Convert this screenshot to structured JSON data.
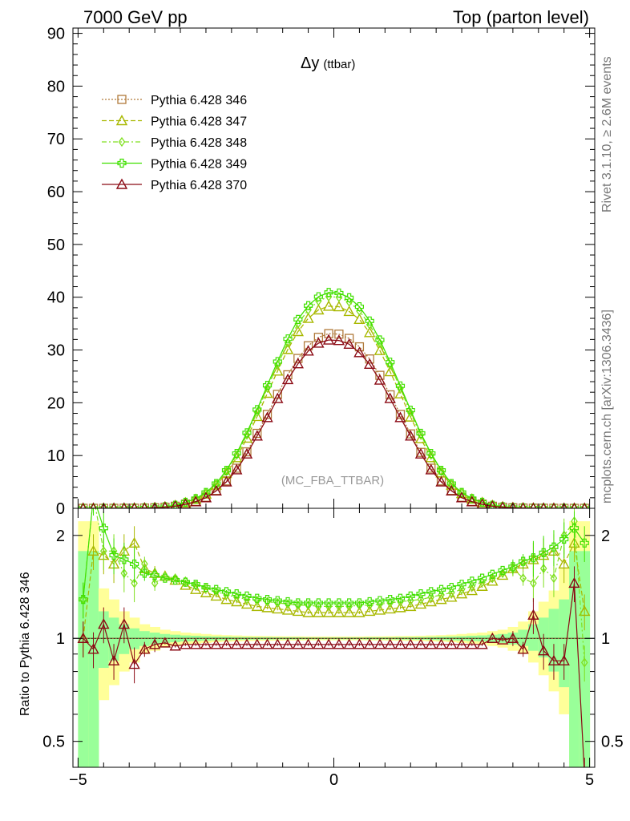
{
  "header": {
    "left_title": "7000 GeV pp",
    "right_title": "Top (parton level)"
  },
  "plot_title": {
    "main": "Δy",
    "sub": "(ttbar)"
  },
  "analysis_label": "(MC_FBA_TTBAR)",
  "side_label_top": "Rivet 3.1.10, ≥ 2.6M events",
  "side_label_bottom": "mcplots.cern.ch [arXiv:1306.3436]",
  "ratio_ylabel": "Ratio to Pythia 6.428 346",
  "legend": [
    {
      "label": "Pythia 6.428 346",
      "color": "#b07a3a",
      "marker": "square",
      "dash": "2,2"
    },
    {
      "label": "Pythia 6.428 347",
      "color": "#a8b800",
      "marker": "triangle",
      "dash": "6,3"
    },
    {
      "label": "Pythia 6.428 348",
      "color": "#80e020",
      "marker": "diamond",
      "dash": "6,3,2,3"
    },
    {
      "label": "Pythia 6.428 349",
      "color": "#40e000",
      "marker": "cross",
      "dash": ""
    },
    {
      "label": "Pythia 6.428 370",
      "color": "#8b0a14",
      "marker": "triangle",
      "dash": ""
    }
  ],
  "chart_data": {
    "type": "line",
    "x_range": [
      -5.1,
      5.1
    ],
    "main_ylim": [
      0,
      91
    ],
    "main_yticks": [
      "0",
      "10",
      "20",
      "30",
      "40",
      "50",
      "60",
      "70",
      "80",
      "90"
    ],
    "ratio_ylim": [
      0.42,
      2.4
    ],
    "ratio_log": true,
    "ratio_yticks": [
      "0.5",
      "1",
      "2"
    ],
    "xticks": [
      "−5",
      "0",
      "5"
    ],
    "x": [
      -4.9,
      -4.7,
      -4.5,
      -4.3,
      -4.1,
      -3.9,
      -3.7,
      -3.5,
      -3.3,
      -3.1,
      -2.9,
      -2.7,
      -2.5,
      -2.3,
      -2.1,
      -1.9,
      -1.7,
      -1.5,
      -1.3,
      -1.1,
      -0.9,
      -0.7,
      -0.5,
      -0.3,
      -0.1,
      0.1,
      0.3,
      0.5,
      0.7,
      0.9,
      1.1,
      1.3,
      1.5,
      1.7,
      1.9,
      2.1,
      2.3,
      2.5,
      2.7,
      2.9,
      3.1,
      3.3,
      3.5,
      3.7,
      3.9,
      4.1,
      4.3,
      4.5,
      4.7,
      4.9
    ],
    "series": [
      {
        "name": "Pythia 6.428 346",
        "values": [
          0,
          0,
          0,
          0.01,
          0.02,
          0.03,
          0.05,
          0.1,
          0.2,
          0.4,
          0.8,
          1.3,
          2.1,
          3.4,
          5.2,
          7.6,
          10.7,
          14.2,
          17.8,
          21.6,
          25.3,
          28.4,
          30.8,
          32.4,
          33.1,
          33.0,
          32.2,
          30.6,
          28.3,
          25.2,
          21.5,
          17.8,
          14.1,
          10.6,
          7.6,
          5.2,
          3.4,
          2.1,
          1.3,
          0.8,
          0.4,
          0.2,
          0.1,
          0.05,
          0.03,
          0.02,
          0.01,
          0,
          0,
          0
        ],
        "ratio": [
          1,
          1,
          1,
          1,
          1,
          1,
          1,
          1,
          1,
          1,
          1,
          1,
          1,
          1,
          1,
          1,
          1,
          1,
          1,
          1,
          1,
          1,
          1,
          1,
          1,
          1,
          1,
          1,
          1,
          1,
          1,
          1,
          1,
          1,
          1,
          1,
          1,
          1,
          1,
          1,
          1,
          1,
          1,
          1,
          1,
          1,
          1,
          1,
          1,
          1
        ]
      },
      {
        "name": "Pythia 6.428 347",
        "values": [
          0,
          0,
          0,
          0.01,
          0.03,
          0.05,
          0.08,
          0.14,
          0.28,
          0.54,
          1.05,
          1.7,
          2.7,
          4.4,
          6.6,
          9.6,
          13.3,
          17.4,
          21.8,
          26.0,
          30.1,
          33.5,
          36.0,
          37.6,
          38.3,
          38.2,
          37.3,
          35.8,
          33.3,
          29.9,
          25.9,
          21.7,
          17.3,
          13.2,
          9.6,
          6.7,
          4.4,
          2.8,
          1.75,
          1.1,
          0.56,
          0.29,
          0.15,
          0.08,
          0.05,
          0.03,
          0.01,
          0,
          0,
          0
        ],
        "ratio": [
          1.0,
          1.8,
          1.75,
          1.65,
          1.8,
          1.9,
          1.6,
          1.55,
          1.52,
          1.48,
          1.43,
          1.39,
          1.36,
          1.33,
          1.3,
          1.28,
          1.26,
          1.24,
          1.23,
          1.22,
          1.21,
          1.2,
          1.19,
          1.19,
          1.19,
          1.19,
          1.19,
          1.19,
          1.2,
          1.21,
          1.22,
          1.23,
          1.24,
          1.26,
          1.28,
          1.3,
          1.32,
          1.35,
          1.38,
          1.42,
          1.47,
          1.53,
          1.6,
          1.65,
          1.7,
          1.75,
          1.8,
          1.65,
          1.9,
          1.2
        ]
      },
      {
        "name": "Pythia 6.428 348",
        "values": [
          0,
          0,
          0,
          0.01,
          0.03,
          0.05,
          0.09,
          0.15,
          0.3,
          0.58,
          1.1,
          1.8,
          2.9,
          4.6,
          7.0,
          10.1,
          13.9,
          18.2,
          22.8,
          27.2,
          31.4,
          35.0,
          37.6,
          39.3,
          40.1,
          40.0,
          39.1,
          37.4,
          34.8,
          31.3,
          27.2,
          22.7,
          18.1,
          13.9,
          10.1,
          7.0,
          4.6,
          2.9,
          1.8,
          1.1,
          0.58,
          0.3,
          0.15,
          0.09,
          0.05,
          0.03,
          0.01,
          0,
          0,
          0
        ],
        "ratio": [
          1.3,
          2.6,
          1.8,
          1.8,
          1.55,
          1.45,
          1.65,
          1.45,
          1.52,
          1.5,
          1.47,
          1.43,
          1.4,
          1.37,
          1.34,
          1.32,
          1.3,
          1.29,
          1.28,
          1.27,
          1.26,
          1.25,
          1.25,
          1.24,
          1.24,
          1.24,
          1.24,
          1.25,
          1.25,
          1.26,
          1.27,
          1.28,
          1.29,
          1.3,
          1.32,
          1.34,
          1.36,
          1.39,
          1.42,
          1.46,
          1.5,
          1.55,
          1.6,
          1.5,
          1.45,
          1.6,
          1.5,
          2.0,
          2.2,
          0.85
        ]
      },
      {
        "name": "Pythia 6.428 349",
        "values": [
          0,
          0,
          0,
          0.01,
          0.03,
          0.05,
          0.09,
          0.16,
          0.31,
          0.6,
          1.15,
          1.85,
          3.0,
          4.7,
          7.2,
          10.4,
          14.3,
          18.7,
          23.3,
          27.8,
          32.1,
          35.8,
          38.4,
          40.1,
          40.9,
          40.8,
          39.9,
          38.2,
          35.5,
          31.9,
          27.7,
          23.2,
          18.6,
          14.2,
          10.4,
          7.2,
          4.7,
          3.0,
          1.85,
          1.15,
          0.6,
          0.31,
          0.16,
          0.09,
          0.05,
          0.03,
          0.01,
          0,
          0,
          0
        ],
        "ratio": [
          1.3,
          2.6,
          2.1,
          1.75,
          1.7,
          1.65,
          1.55,
          1.53,
          1.5,
          1.48,
          1.46,
          1.44,
          1.41,
          1.39,
          1.37,
          1.35,
          1.33,
          1.31,
          1.3,
          1.29,
          1.28,
          1.27,
          1.27,
          1.27,
          1.27,
          1.27,
          1.27,
          1.27,
          1.28,
          1.29,
          1.3,
          1.31,
          1.33,
          1.35,
          1.37,
          1.39,
          1.41,
          1.44,
          1.47,
          1.5,
          1.54,
          1.58,
          1.62,
          1.68,
          1.72,
          1.78,
          1.85,
          1.95,
          2.1,
          1.9
        ]
      },
      {
        "name": "Pythia 6.428 370",
        "values": [
          0,
          0,
          0,
          0.01,
          0.02,
          0.03,
          0.05,
          0.1,
          0.19,
          0.38,
          0.77,
          1.25,
          2.0,
          3.3,
          5.0,
          7.3,
          10.3,
          13.7,
          17.2,
          20.8,
          24.4,
          27.4,
          29.8,
          31.3,
          31.9,
          31.8,
          31.1,
          29.5,
          27.3,
          24.3,
          20.8,
          17.2,
          13.7,
          10.3,
          7.3,
          5.0,
          3.3,
          2.0,
          1.25,
          0.77,
          0.38,
          0.2,
          0.1,
          0.05,
          0.03,
          0.02,
          0.01,
          0,
          0,
          0
        ],
        "ratio": [
          1.0,
          0.93,
          1.1,
          0.86,
          1.1,
          0.84,
          0.93,
          0.96,
          0.97,
          0.95,
          0.96,
          0.96,
          0.96,
          0.96,
          0.96,
          0.96,
          0.96,
          0.96,
          0.96,
          0.96,
          0.96,
          0.96,
          0.96,
          0.96,
          0.96,
          0.96,
          0.96,
          0.96,
          0.96,
          0.96,
          0.96,
          0.96,
          0.96,
          0.96,
          0.96,
          0.96,
          0.96,
          0.96,
          0.96,
          0.96,
          1.0,
          0.99,
          1.0,
          0.93,
          1.17,
          0.92,
          0.86,
          0.86,
          1.45,
          0.4
        ]
      }
    ],
    "ratio_bands": {
      "yellow_lo": [
        0.3,
        0.3,
        0.66,
        0.73,
        0.8,
        0.85,
        0.9,
        0.92,
        0.94,
        0.95,
        0.96,
        0.965,
        0.97,
        0.975,
        0.978,
        0.98,
        0.982,
        0.983,
        0.984,
        0.985,
        0.986,
        0.986,
        0.987,
        0.987,
        0.987,
        0.987,
        0.987,
        0.987,
        0.986,
        0.986,
        0.985,
        0.984,
        0.983,
        0.982,
        0.98,
        0.978,
        0.975,
        0.97,
        0.965,
        0.96,
        0.95,
        0.94,
        0.92,
        0.9,
        0.85,
        0.78,
        0.7,
        0.6,
        0.3,
        0.3
      ],
      "yellow_hi": [
        2.2,
        2.2,
        1.4,
        1.3,
        1.2,
        1.15,
        1.1,
        1.08,
        1.06,
        1.05,
        1.04,
        1.035,
        1.03,
        1.025,
        1.022,
        1.02,
        1.018,
        1.017,
        1.016,
        1.015,
        1.014,
        1.014,
        1.013,
        1.013,
        1.013,
        1.013,
        1.013,
        1.013,
        1.014,
        1.014,
        1.015,
        1.016,
        1.017,
        1.018,
        1.02,
        1.022,
        1.025,
        1.03,
        1.035,
        1.04,
        1.05,
        1.06,
        1.08,
        1.12,
        1.2,
        1.28,
        1.38,
        1.6,
        2.2,
        2.2
      ],
      "green_lo": [
        0.3,
        0.3,
        0.82,
        0.86,
        0.9,
        0.93,
        0.95,
        0.96,
        0.97,
        0.975,
        0.98,
        0.982,
        0.985,
        0.987,
        0.988,
        0.99,
        0.991,
        0.992,
        0.992,
        0.993,
        0.993,
        0.993,
        0.994,
        0.994,
        0.994,
        0.994,
        0.994,
        0.994,
        0.993,
        0.993,
        0.993,
        0.992,
        0.992,
        0.991,
        0.99,
        0.988,
        0.987,
        0.985,
        0.982,
        0.98,
        0.975,
        0.97,
        0.96,
        0.95,
        0.92,
        0.88,
        0.8,
        0.72,
        0.3,
        0.3
      ],
      "green_hi": [
        1.8,
        1.8,
        1.2,
        1.15,
        1.1,
        1.07,
        1.05,
        1.04,
        1.03,
        1.025,
        1.02,
        1.018,
        1.015,
        1.013,
        1.012,
        1.01,
        1.009,
        1.008,
        1.008,
        1.007,
        1.007,
        1.007,
        1.006,
        1.006,
        1.006,
        1.006,
        1.006,
        1.006,
        1.007,
        1.007,
        1.007,
        1.008,
        1.008,
        1.009,
        1.01,
        1.012,
        1.013,
        1.015,
        1.018,
        1.02,
        1.025,
        1.03,
        1.04,
        1.06,
        1.1,
        1.15,
        1.22,
        1.3,
        1.8,
        1.8
      ]
    }
  }
}
